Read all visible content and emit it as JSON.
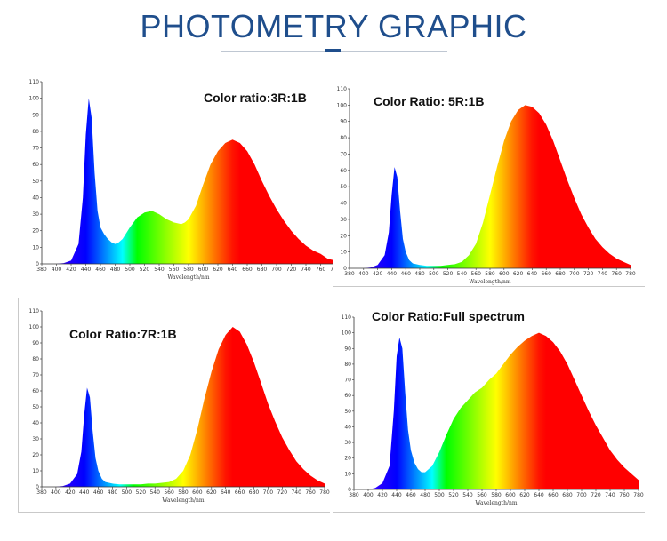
{
  "page": {
    "title": "PHOTOMETRY GRAPHIC"
  },
  "chart_data": [
    {
      "type": "area",
      "title": "Color ratio:3R:1B",
      "xlabel": "Wavelength/nm",
      "ylabel": "",
      "xlim": [
        380,
        780
      ],
      "ylim": [
        0,
        110
      ],
      "x_ticks": [
        380,
        400,
        420,
        440,
        460,
        480,
        500,
        520,
        540,
        560,
        580,
        600,
        620,
        640,
        660,
        680,
        700,
        720,
        740,
        760,
        780
      ],
      "y_ticks": [
        0,
        10,
        20,
        30,
        40,
        50,
        60,
        70,
        80,
        90,
        100,
        110
      ],
      "grid": false,
      "series": [
        {
          "x": [
            380,
            400,
            410,
            420,
            430,
            436,
            440,
            444,
            448,
            452,
            456,
            460,
            465,
            470,
            475,
            480,
            485,
            490,
            500,
            510,
            520,
            530,
            540,
            550,
            560,
            570,
            575,
            580,
            590,
            600,
            610,
            620,
            630,
            640,
            650,
            660,
            670,
            680,
            690,
            700,
            710,
            720,
            730,
            740,
            750,
            760,
            770,
            780
          ],
          "values": [
            0,
            0,
            0.5,
            2,
            12,
            40,
            78,
            100,
            88,
            55,
            32,
            22,
            18,
            15,
            13,
            12,
            13,
            15,
            22,
            28,
            31,
            32,
            30,
            27,
            25,
            24,
            25,
            27,
            35,
            48,
            60,
            68,
            73,
            75,
            73,
            68,
            60,
            50,
            41,
            33,
            26,
            20,
            15,
            11,
            8,
            6,
            3,
            2
          ]
        }
      ]
    },
    {
      "type": "area",
      "title": "Color Ratio: 5R:1B",
      "xlabel": "Wavelength/nm",
      "ylabel": "",
      "xlim": [
        380,
        780
      ],
      "ylim": [
        0,
        110
      ],
      "x_ticks": [
        380,
        400,
        420,
        440,
        460,
        480,
        500,
        520,
        540,
        560,
        580,
        600,
        620,
        640,
        660,
        680,
        700,
        720,
        740,
        760,
        780
      ],
      "y_ticks": [
        0,
        10,
        20,
        30,
        40,
        50,
        60,
        70,
        80,
        90,
        100,
        110
      ],
      "grid": false,
      "series": [
        {
          "x": [
            380,
            400,
            410,
            420,
            430,
            436,
            440,
            444,
            448,
            452,
            456,
            460,
            465,
            470,
            480,
            490,
            500,
            510,
            520,
            530,
            540,
            550,
            560,
            570,
            580,
            590,
            600,
            610,
            620,
            630,
            640,
            650,
            660,
            670,
            680,
            690,
            700,
            710,
            720,
            730,
            740,
            750,
            760,
            770,
            780
          ],
          "values": [
            0,
            0,
            0.5,
            2,
            8,
            22,
            45,
            62,
            56,
            35,
            18,
            10,
            5,
            3,
            2,
            1.5,
            1.5,
            1.5,
            2,
            2.5,
            4,
            8,
            15,
            28,
            45,
            62,
            78,
            90,
            97,
            100,
            99,
            95,
            88,
            78,
            66,
            54,
            43,
            33,
            25,
            18,
            13,
            9,
            6,
            4,
            2
          ]
        }
      ]
    },
    {
      "type": "area",
      "title": "Color Ratio:7R:1B",
      "xlabel": "Wavelength/nm",
      "ylabel": "",
      "xlim": [
        380,
        780
      ],
      "ylim": [
        0,
        110
      ],
      "x_ticks": [
        380,
        400,
        420,
        440,
        460,
        480,
        500,
        520,
        540,
        560,
        580,
        600,
        620,
        640,
        660,
        680,
        700,
        720,
        740,
        760,
        780
      ],
      "y_ticks": [
        0,
        10,
        20,
        30,
        40,
        50,
        60,
        70,
        80,
        90,
        100,
        110
      ],
      "grid": false,
      "series": [
        {
          "x": [
            380,
            400,
            410,
            420,
            430,
            436,
            440,
            444,
            448,
            452,
            456,
            460,
            465,
            470,
            480,
            490,
            500,
            510,
            520,
            530,
            540,
            550,
            560,
            570,
            580,
            590,
            600,
            610,
            620,
            630,
            640,
            650,
            660,
            670,
            680,
            690,
            700,
            710,
            720,
            730,
            740,
            750,
            760,
            770,
            780
          ],
          "values": [
            0,
            0,
            0.5,
            2,
            8,
            22,
            45,
            62,
            56,
            35,
            18,
            10,
            5,
            3,
            2,
            1.5,
            1.5,
            1.5,
            1.5,
            2,
            2,
            2.5,
            3,
            5,
            10,
            20,
            36,
            55,
            72,
            86,
            95,
            100,
            97,
            89,
            78,
            65,
            52,
            41,
            31,
            23,
            16,
            11,
            7,
            4,
            2
          ]
        }
      ]
    },
    {
      "type": "area",
      "title": "Color Ratio:Full spectrum",
      "xlabel": "Wavelength/nm",
      "ylabel": "",
      "xlim": [
        380,
        780
      ],
      "ylim": [
        0,
        110
      ],
      "x_ticks": [
        380,
        400,
        420,
        440,
        460,
        480,
        500,
        520,
        540,
        560,
        580,
        600,
        620,
        640,
        660,
        680,
        700,
        720,
        740,
        760,
        780
      ],
      "y_ticks": [
        0,
        10,
        20,
        30,
        40,
        50,
        60,
        70,
        80,
        90,
        100,
        110
      ],
      "grid": false,
      "series": [
        {
          "x": [
            380,
            400,
            410,
            420,
            430,
            436,
            440,
            444,
            448,
            452,
            456,
            460,
            465,
            470,
            475,
            480,
            490,
            500,
            510,
            520,
            530,
            540,
            550,
            560,
            570,
            580,
            590,
            600,
            610,
            620,
            630,
            640,
            650,
            660,
            670,
            680,
            690,
            700,
            710,
            720,
            730,
            740,
            750,
            760,
            770,
            780
          ],
          "values": [
            0,
            0,
            1,
            4,
            15,
            50,
            85,
            97,
            90,
            62,
            38,
            25,
            17,
            13,
            11,
            11,
            15,
            24,
            35,
            45,
            52,
            57,
            62,
            65,
            70,
            74,
            80,
            86,
            91,
            95,
            98,
            100,
            98,
            94,
            88,
            80,
            70,
            60,
            50,
            41,
            33,
            25,
            19,
            14,
            10,
            6
          ]
        }
      ]
    }
  ]
}
